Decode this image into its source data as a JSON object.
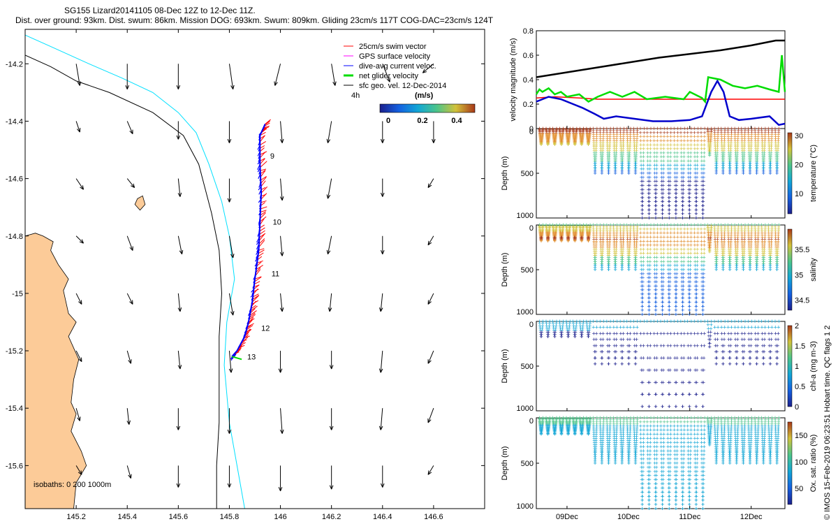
{
  "title_line1": "SG155 Lizard20141105 08-Dec 12Z to 12-Dec 11Z.",
  "title_line2": "Dist. over ground: 93km. Dist. swum: 86km. Mission DOG: 693km. Swum: 809km. Gliding 23cm/s 117T COG-DAC=23cm/s 124T",
  "credit": "© IMOS 15-Feb-2019 06:23:51 Hobart time. QC flags 1 2",
  "colors": {
    "land": "#fccb98",
    "coast200": "#000000",
    "coast1000": "#00e0ff",
    "swim": "#ff0000",
    "dac": "#0000ff",
    "net": "#00dd00",
    "gps": "#ff00ff",
    "speed": "#000000"
  },
  "chart_data": [
    {
      "type": "scatter",
      "id": "map",
      "xlim": [
        145.0,
        146.8
      ],
      "ylim": [
        -15.75,
        -14.08
      ],
      "xticks": [
        "145.2",
        "145.4",
        "145.6",
        "145.8",
        "146",
        "146.2",
        "146.4",
        "146.6"
      ],
      "yticks": [
        "-14.2",
        "-14.4",
        "-14.6",
        "-14.8",
        "-15",
        "-15.2",
        "-15.4",
        "-15.6"
      ],
      "legend": {
        "entries": [
          "25cm/s swim vector",
          "GPS surface velocity",
          "dive-avg current veloc.",
          "net glider velocity",
          "sfc geo. vel. 12-Dec-2014"
        ],
        "interval_label": "4h",
        "units": "(m/s)",
        "colorbar_ticks": [
          "0",
          "0.2",
          "0.4"
        ]
      },
      "isobaths_label": "isobaths: 0   200  1000m",
      "day_labels": [
        {
          "label": "9",
          "lon": 145.96,
          "lat": -14.53
        },
        {
          "label": "10",
          "lon": 145.97,
          "lat": -14.76
        },
        {
          "label": "11",
          "lon": 145.965,
          "lat": -14.94
        },
        {
          "label": "12",
          "lon": 145.925,
          "lat": -15.13
        },
        {
          "label": "13",
          "lon": 145.87,
          "lat": -15.23
        }
      ],
      "track": [
        [
          145.94,
          -14.41
        ],
        [
          145.92,
          -14.45
        ],
        [
          145.92,
          -14.55
        ],
        [
          145.925,
          -14.65
        ],
        [
          145.92,
          -14.75
        ],
        [
          145.915,
          -14.85
        ],
        [
          145.9,
          -14.95
        ],
        [
          145.89,
          -15.03
        ],
        [
          145.875,
          -15.1
        ],
        [
          145.86,
          -15.15
        ],
        [
          145.83,
          -15.2
        ],
        [
          145.81,
          -15.22
        ]
      ],
      "coastline_land": [
        [
          145.0,
          -14.8
        ],
        [
          145.04,
          -14.79
        ],
        [
          145.07,
          -14.8
        ],
        [
          145.11,
          -14.82
        ],
        [
          145.1,
          -14.85
        ],
        [
          145.13,
          -14.9
        ],
        [
          145.17,
          -14.95
        ],
        [
          145.15,
          -14.99
        ],
        [
          145.17,
          -15.07
        ],
        [
          145.2,
          -15.1
        ],
        [
          145.17,
          -15.15
        ],
        [
          145.21,
          -15.23
        ],
        [
          145.19,
          -15.3
        ],
        [
          145.18,
          -15.38
        ],
        [
          145.2,
          -15.42
        ],
        [
          145.18,
          -15.48
        ],
        [
          145.22,
          -15.55
        ],
        [
          145.24,
          -15.6
        ],
        [
          145.2,
          -15.66
        ],
        [
          145.19,
          -15.75
        ]
      ],
      "island": [
        [
          145.44,
          -14.67
        ],
        [
          145.46,
          -14.66
        ],
        [
          145.47,
          -14.69
        ],
        [
          145.45,
          -14.71
        ],
        [
          145.43,
          -14.69
        ]
      ],
      "isobath_200": [
        [
          145.0,
          -14.17
        ],
        [
          145.1,
          -14.21
        ],
        [
          145.2,
          -14.26
        ],
        [
          145.33,
          -14.3
        ],
        [
          145.5,
          -14.37
        ],
        [
          145.62,
          -14.45
        ],
        [
          145.68,
          -14.55
        ],
        [
          145.73,
          -14.72
        ],
        [
          145.76,
          -14.85
        ],
        [
          145.77,
          -15.0
        ],
        [
          145.76,
          -15.15
        ],
        [
          145.76,
          -15.3
        ],
        [
          145.76,
          -15.45
        ],
        [
          145.75,
          -15.6
        ],
        [
          145.75,
          -15.75
        ]
      ],
      "isobath_1000": [
        [
          145.0,
          -14.1
        ],
        [
          145.1,
          -14.14
        ],
        [
          145.25,
          -14.2
        ],
        [
          145.38,
          -14.25
        ],
        [
          145.5,
          -14.3
        ],
        [
          145.6,
          -14.37
        ],
        [
          145.67,
          -14.44
        ],
        [
          145.72,
          -14.55
        ],
        [
          145.77,
          -14.68
        ],
        [
          145.8,
          -14.8
        ],
        [
          145.82,
          -14.95
        ],
        [
          145.79,
          -15.1
        ],
        [
          145.78,
          -15.25
        ],
        [
          145.8,
          -15.45
        ],
        [
          145.83,
          -15.6
        ],
        [
          145.86,
          -15.75
        ]
      ],
      "geostrophic_field": {
        "lons": [
          145.2,
          145.4,
          145.6,
          145.8,
          146.0,
          146.2,
          146.4,
          146.6
        ],
        "lats": [
          -14.2,
          -14.4,
          -14.6,
          -14.8,
          -15.0,
          -15.2,
          -15.4,
          -15.6
        ],
        "u_v_m_s": [
          [
            [
              0.02,
              -0.12
            ],
            [
              0,
              -0.14
            ],
            [
              0,
              -0.14
            ],
            [
              0.02,
              -0.14
            ],
            [
              -0.03,
              -0.12
            ],
            [
              0.02,
              -0.12
            ],
            [
              0.04,
              -0.1
            ],
            [
              -0.06,
              -0.05
            ]
          ],
          [
            [
              0.02,
              -0.06
            ],
            [
              0.03,
              -0.07
            ],
            [
              0,
              -0.1
            ],
            [
              0,
              -0.12
            ],
            [
              0.01,
              -0.12
            ],
            [
              -0.02,
              -0.12
            ],
            [
              0,
              -0.12
            ],
            [
              0,
              -0.12
            ]
          ],
          [
            [
              0.04,
              -0.06
            ],
            [
              0.04,
              -0.05
            ],
            [
              0.01,
              -0.1
            ],
            [
              0,
              -0.13
            ],
            [
              0.01,
              -0.12
            ],
            [
              -0.02,
              -0.11
            ],
            [
              0,
              -0.1
            ],
            [
              -0.03,
              -0.05
            ]
          ],
          [
            [
              0.04,
              -0.04
            ],
            [
              0.03,
              -0.08
            ],
            [
              0.02,
              -0.1
            ],
            [
              0.02,
              -0.12
            ],
            [
              0.01,
              -0.11
            ],
            [
              -0.02,
              -0.1
            ],
            [
              0,
              -0.1
            ],
            [
              -0.03,
              -0.05
            ]
          ],
          [
            [
              0.03,
              -0.06
            ],
            [
              0.03,
              -0.06
            ],
            [
              0.01,
              -0.1
            ],
            [
              0.02,
              -0.12
            ],
            [
              0.01,
              -0.1
            ],
            [
              -0.01,
              -0.1
            ],
            [
              -0.01,
              -0.1
            ],
            [
              -0.03,
              -0.06
            ]
          ],
          [
            [
              0.03,
              -0.06
            ],
            [
              0.02,
              -0.07
            ],
            [
              0.01,
              -0.1
            ],
            [
              0.01,
              -0.12
            ],
            [
              0,
              -0.12
            ],
            [
              0,
              -0.1
            ],
            [
              -0.01,
              -0.12
            ],
            [
              -0.03,
              -0.07
            ]
          ],
          [
            [
              0.02,
              -0.07
            ],
            [
              0.01,
              -0.09
            ],
            [
              0,
              -0.12
            ],
            [
              0,
              -0.14
            ],
            [
              0.01,
              -0.14
            ],
            [
              0,
              -0.12
            ],
            [
              -0.01,
              -0.12
            ],
            [
              -0.03,
              -0.08
            ]
          ],
          [
            [
              0.03,
              -0.05
            ],
            [
              0.02,
              -0.07
            ],
            [
              0,
              -0.12
            ],
            [
              0,
              -0.12
            ],
            [
              0,
              -0.14
            ],
            [
              0,
              -0.13
            ],
            [
              0,
              -0.12
            ],
            [
              -0.03,
              -0.05
            ]
          ]
        ]
      }
    },
    {
      "type": "line",
      "id": "velocity",
      "ylabel": "velocity magnitude (m/s)",
      "xlim": [
        8.5,
        12.55
      ],
      "ylim": [
        0,
        0.8
      ],
      "yticks": [
        "0",
        "0.2",
        "0.4",
        "0.6",
        "0.8"
      ],
      "series": [
        {
          "color": "#000000",
          "x": [
            8.5,
            9.0,
            9.5,
            10.0,
            10.5,
            11.0,
            11.5,
            12.0,
            12.4,
            12.55
          ],
          "values": [
            0.42,
            0.46,
            0.5,
            0.54,
            0.58,
            0.61,
            0.64,
            0.68,
            0.72,
            0.72
          ]
        },
        {
          "color": "#ff0000",
          "x": [
            8.5,
            8.8,
            9.2,
            9.5,
            10.5,
            11.5,
            12.55
          ],
          "values": [
            0.25,
            0.26,
            0.25,
            0.24,
            0.24,
            0.24,
            0.24
          ]
        },
        {
          "color": "#0000cc",
          "x": [
            8.5,
            8.7,
            8.9,
            9.1,
            9.25,
            9.45,
            9.6,
            9.8,
            10.1,
            10.4,
            10.7,
            11.0,
            11.2,
            11.35,
            11.45,
            11.55,
            11.65,
            11.8,
            12.0,
            12.3,
            12.45,
            12.55
          ],
          "values": [
            0.22,
            0.26,
            0.24,
            0.2,
            0.17,
            0.12,
            0.08,
            0.1,
            0.08,
            0.06,
            0.06,
            0.07,
            0.1,
            0.3,
            0.39,
            0.3,
            0.1,
            0.07,
            0.08,
            0.1,
            0.03,
            0.04
          ]
        },
        {
          "color": "#00dd00",
          "x": [
            8.5,
            8.55,
            8.6,
            8.7,
            8.8,
            8.9,
            9.0,
            9.2,
            9.3,
            9.35,
            9.5,
            9.7,
            9.9,
            10.1,
            10.3,
            10.6,
            10.9,
            11.0,
            11.2,
            11.25,
            11.3,
            11.5,
            11.7,
            11.9,
            12.1,
            12.3,
            12.45,
            12.5,
            12.55
          ],
          "values": [
            0.28,
            0.32,
            0.3,
            0.33,
            0.28,
            0.3,
            0.26,
            0.28,
            0.24,
            0.22,
            0.26,
            0.3,
            0.26,
            0.3,
            0.24,
            0.26,
            0.24,
            0.3,
            0.25,
            0.22,
            0.42,
            0.4,
            0.35,
            0.33,
            0.35,
            0.32,
            0.3,
            0.6,
            0.3
          ]
        }
      ]
    },
    {
      "type": "scatter",
      "id": "temperature",
      "ylabel": "Depth (m)",
      "colorbar_label": "temperature (°C)",
      "colorbar_ticks": [
        "10",
        "20",
        "30"
      ],
      "clim": [
        3,
        31
      ],
      "ylim": [
        1000,
        0
      ],
      "yticks": [
        "0",
        "500",
        "1000"
      ],
      "colormap": "parula"
    },
    {
      "type": "scatter",
      "id": "salinity",
      "ylabel": "Depth (m)",
      "colorbar_label": "salinity",
      "colorbar_ticks": [
        "34.5",
        "35",
        "35.5"
      ],
      "clim": [
        34.3,
        35.9
      ],
      "ylim": [
        1000,
        0
      ],
      "yticks": [
        "0",
        "500",
        "1000"
      ],
      "colormap": "parula"
    },
    {
      "type": "scatter",
      "id": "chla",
      "ylabel": "Depth (m)",
      "colorbar_label": "chl-a (mg m-3)",
      "colorbar_ticks": [
        "0",
        "0.5",
        "1",
        "1.5",
        "2"
      ],
      "clim": [
        0,
        2
      ],
      "ylim": [
        1000,
        0
      ],
      "yticks": [
        "0",
        "500",
        "1000"
      ],
      "colormap": "parula"
    },
    {
      "type": "scatter",
      "id": "oxygen",
      "ylabel": "Depth (m)",
      "colorbar_label": "Ox. sat. ratio (%)",
      "colorbar_ticks": [
        "50",
        "100",
        "150"
      ],
      "clim": [
        20,
        175
      ],
      "ylim": [
        1000,
        0
      ],
      "yticks": [
        "0",
        "500",
        "1000"
      ],
      "xticks": [
        "09Dec",
        "10Dec",
        "11Dec",
        "12Dec"
      ],
      "xlim": [
        8.5,
        12.55
      ],
      "colormap": "parula"
    }
  ]
}
